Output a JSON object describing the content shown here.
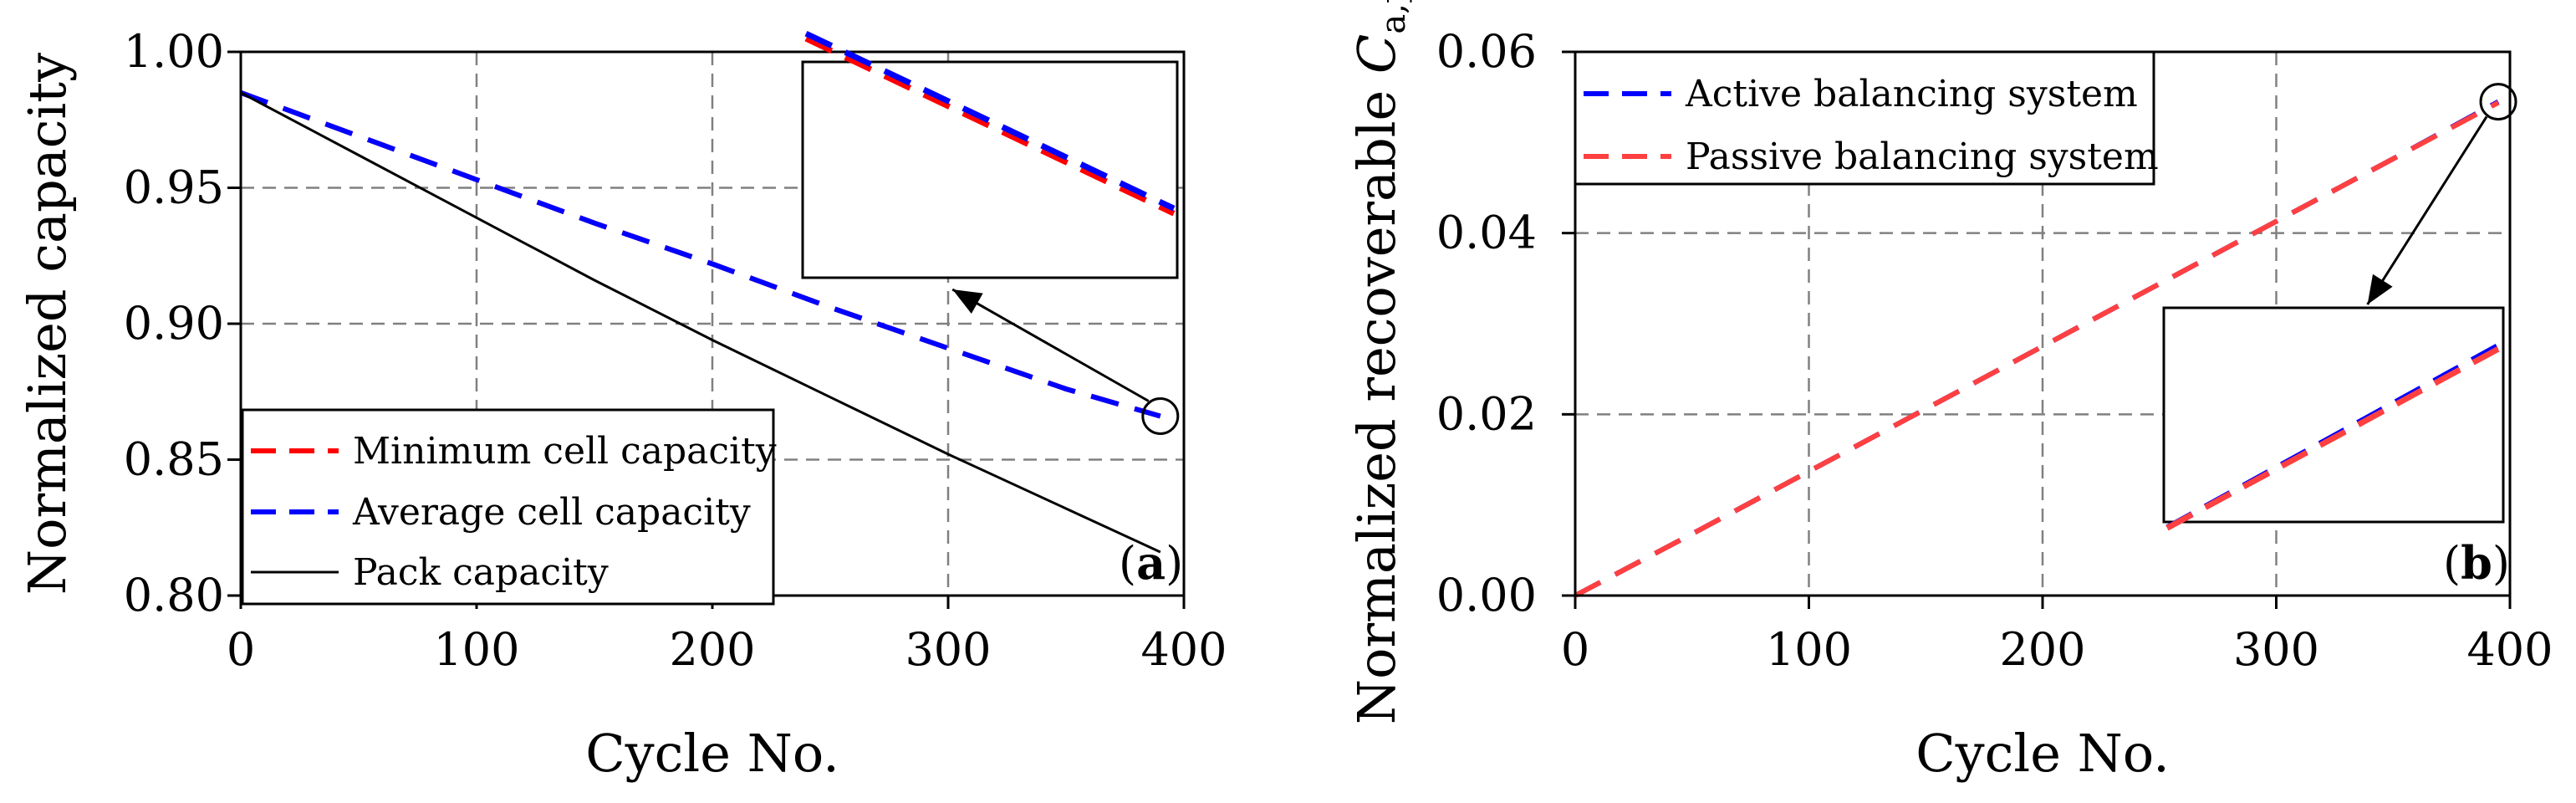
{
  "chart_data": [
    {
      "type": "line",
      "panel_label": "a",
      "xlabel": "Cycle No.",
      "ylabel": "Normalized capacity",
      "xlim": [
        0,
        400
      ],
      "ylim": [
        0.8,
        1.0
      ],
      "x_ticks": [
        "0",
        "100",
        "200",
        "300",
        "400"
      ],
      "y_ticks": [
        "0.80",
        "0.85",
        "0.90",
        "0.95",
        "1.00"
      ],
      "grid": true,
      "legend_position": "bottom-left",
      "x": [
        0,
        50,
        100,
        150,
        200,
        250,
        300,
        350,
        390
      ],
      "series": [
        {
          "name": "Minimum cell capacity",
          "color": "#ff0000",
          "style": "dashed",
          "values": [
            0.985,
            0.969,
            0.953,
            0.937,
            0.922,
            0.906,
            0.891,
            0.876,
            0.866
          ]
        },
        {
          "name": "Average cell capacity",
          "color": "#0000ff",
          "style": "dashed",
          "values": [
            0.985,
            0.969,
            0.953,
            0.937,
            0.922,
            0.906,
            0.891,
            0.876,
            0.866
          ]
        },
        {
          "name": "Pack capacity",
          "color": "#000000",
          "style": "solid",
          "values": [
            0.985,
            0.962,
            0.939,
            0.916,
            0.894,
            0.873,
            0.852,
            0.832,
            0.816
          ]
        }
      ],
      "inset": {
        "x_range": [
          375,
          392
        ],
        "y_range": [
          0.864,
          0.869
        ]
      }
    },
    {
      "type": "line",
      "panel_label": "b",
      "xlabel": "Cycle No.",
      "ylabel": "Normalized recoverable ",
      "ylabel_symbol": "C",
      "ylabel_subscript": "a,pack",
      "xlim": [
        0,
        400
      ],
      "ylim": [
        0,
        0.06
      ],
      "x_ticks": [
        "0",
        "100",
        "200",
        "300",
        "400"
      ],
      "y_ticks": [
        "0.00",
        "0.02",
        "0.04",
        "0.06"
      ],
      "grid": true,
      "legend_position": "top-left",
      "x": [
        0,
        50,
        100,
        150,
        200,
        250,
        300,
        350,
        395
      ],
      "series": [
        {
          "name": "Active balancing system",
          "color": "#0000ff",
          "style": "dashed",
          "values": [
            0.0,
            0.0068,
            0.0137,
            0.0206,
            0.0275,
            0.0344,
            0.0413,
            0.0482,
            0.0545
          ]
        },
        {
          "name": "Passive balancing system",
          "color": "#ff4040",
          "style": "dashed",
          "values": [
            0.0,
            0.0068,
            0.0137,
            0.0206,
            0.0275,
            0.0344,
            0.0413,
            0.0482,
            0.0544
          ]
        }
      ],
      "inset": {
        "x_range": [
          380,
          396
        ],
        "y_range": [
          0.0525,
          0.055
        ]
      }
    }
  ]
}
